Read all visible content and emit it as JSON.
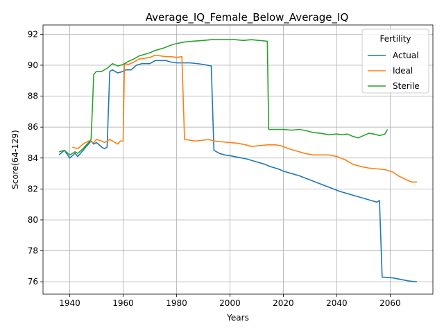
{
  "chart_data": {
    "type": "line",
    "title": "Average_IQ_Female_Below_Average_IQ",
    "xlabel": "Years",
    "ylabel": "Score(64-129)",
    "xlim": [
      1930,
      2076
    ],
    "ylim": [
      75.2,
      92.6
    ],
    "xticks": [
      1940,
      1960,
      1980,
      2000,
      2020,
      2040,
      2060
    ],
    "yticks": [
      76,
      78,
      80,
      82,
      84,
      86,
      88,
      90,
      92
    ],
    "grid": true,
    "legend": {
      "title": "Fertility",
      "placement": "top-right"
    },
    "series": [
      {
        "name": "Actual",
        "color": "#1f77b4",
        "points": [
          [
            1936,
            84.2
          ],
          [
            1938,
            84.5
          ],
          [
            1940,
            84.0
          ],
          [
            1942,
            84.3
          ],
          [
            1943,
            84.1
          ],
          [
            1945,
            84.5
          ],
          [
            1947,
            84.9
          ],
          [
            1948,
            85.1
          ],
          [
            1949,
            84.9
          ],
          [
            1950,
            85.0
          ],
          [
            1952,
            84.7
          ],
          [
            1953,
            84.6
          ],
          [
            1954,
            84.7
          ],
          [
            1955,
            89.6
          ],
          [
            1956,
            89.7
          ],
          [
            1957,
            89.6
          ],
          [
            1958,
            89.5
          ],
          [
            1960,
            89.6
          ],
          [
            1961,
            89.7
          ],
          [
            1963,
            89.7
          ],
          [
            1965,
            90.0
          ],
          [
            1967,
            90.1
          ],
          [
            1969,
            90.1
          ],
          [
            1970,
            90.1
          ],
          [
            1972,
            90.3
          ],
          [
            1974,
            90.3
          ],
          [
            1976,
            90.3
          ],
          [
            1978,
            90.2
          ],
          [
            1980,
            90.15
          ],
          [
            1983,
            90.15
          ],
          [
            1985,
            90.15
          ],
          [
            1988,
            90.1
          ],
          [
            1990,
            90.05
          ],
          [
            1993,
            89.95
          ],
          [
            1994,
            84.5
          ],
          [
            1996,
            84.3
          ],
          [
            1998,
            84.2
          ],
          [
            2000,
            84.15
          ],
          [
            2003,
            84.05
          ],
          [
            2006,
            83.95
          ],
          [
            2008,
            83.85
          ],
          [
            2010,
            83.75
          ],
          [
            2013,
            83.6
          ],
          [
            2015,
            83.45
          ],
          [
            2018,
            83.3
          ],
          [
            2020,
            83.15
          ],
          [
            2023,
            83.0
          ],
          [
            2026,
            82.85
          ],
          [
            2029,
            82.65
          ],
          [
            2032,
            82.45
          ],
          [
            2035,
            82.25
          ],
          [
            2038,
            82.05
          ],
          [
            2041,
            81.85
          ],
          [
            2044,
            81.7
          ],
          [
            2047,
            81.55
          ],
          [
            2050,
            81.4
          ],
          [
            2053,
            81.25
          ],
          [
            2055,
            81.15
          ],
          [
            2056,
            81.25
          ],
          [
            2057,
            76.3
          ],
          [
            2059,
            76.28
          ],
          [
            2061,
            76.25
          ],
          [
            2064,
            76.15
          ],
          [
            2067,
            76.05
          ],
          [
            2070,
            76.0
          ]
        ]
      },
      {
        "name": "Ideal",
        "color": "#ff7f0e",
        "points": [
          [
            1941,
            84.7
          ],
          [
            1943,
            84.6
          ],
          [
            1945,
            84.9
          ],
          [
            1947,
            85.1
          ],
          [
            1949,
            85.0
          ],
          [
            1950,
            85.2
          ],
          [
            1952,
            85.1
          ],
          [
            1953,
            85.0
          ],
          [
            1955,
            85.2
          ],
          [
            1957,
            85.0
          ],
          [
            1958,
            84.9
          ],
          [
            1959,
            85.1
          ],
          [
            1960,
            85.1
          ],
          [
            1960.5,
            90.1
          ],
          [
            1962,
            90.05
          ],
          [
            1964,
            90.2
          ],
          [
            1966,
            90.4
          ],
          [
            1968,
            90.45
          ],
          [
            1970,
            90.5
          ],
          [
            1972,
            90.65
          ],
          [
            1974,
            90.6
          ],
          [
            1976,
            90.55
          ],
          [
            1978,
            90.55
          ],
          [
            1980,
            90.5
          ],
          [
            1982,
            90.55
          ],
          [
            1983,
            85.2
          ],
          [
            1985,
            85.15
          ],
          [
            1987,
            85.1
          ],
          [
            1990,
            85.15
          ],
          [
            1992,
            85.2
          ],
          [
            1994,
            85.1
          ],
          [
            1997,
            85.05
          ],
          [
            2000,
            85.0
          ],
          [
            2003,
            84.95
          ],
          [
            2006,
            84.85
          ],
          [
            2008,
            84.75
          ],
          [
            2011,
            84.8
          ],
          [
            2014,
            84.85
          ],
          [
            2017,
            84.85
          ],
          [
            2019,
            84.8
          ],
          [
            2022,
            84.6
          ],
          [
            2025,
            84.45
          ],
          [
            2028,
            84.3
          ],
          [
            2031,
            84.2
          ],
          [
            2034,
            84.2
          ],
          [
            2037,
            84.2
          ],
          [
            2040,
            84.1
          ],
          [
            2043,
            83.9
          ],
          [
            2046,
            83.6
          ],
          [
            2049,
            83.45
          ],
          [
            2052,
            83.35
          ],
          [
            2055,
            83.3
          ],
          [
            2058,
            83.25
          ],
          [
            2061,
            83.1
          ],
          [
            2063,
            82.85
          ],
          [
            2066,
            82.6
          ],
          [
            2068,
            82.45
          ],
          [
            2070,
            82.45
          ]
        ]
      },
      {
        "name": "Sterile",
        "color": "#2ca02c",
        "points": [
          [
            1936,
            84.4
          ],
          [
            1938,
            84.5
          ],
          [
            1940,
            84.2
          ],
          [
            1942,
            84.4
          ],
          [
            1943,
            84.3
          ],
          [
            1945,
            84.6
          ],
          [
            1947,
            85.0
          ],
          [
            1948,
            85.2
          ],
          [
            1949,
            89.4
          ],
          [
            1950,
            89.6
          ],
          [
            1952,
            89.6
          ],
          [
            1954,
            89.8
          ],
          [
            1956,
            90.1
          ],
          [
            1958,
            89.95
          ],
          [
            1960,
            90.05
          ],
          [
            1962,
            90.25
          ],
          [
            1964,
            90.4
          ],
          [
            1966,
            90.6
          ],
          [
            1968,
            90.7
          ],
          [
            1970,
            90.8
          ],
          [
            1972,
            90.95
          ],
          [
            1975,
            91.1
          ],
          [
            1978,
            91.3
          ],
          [
            1980,
            91.4
          ],
          [
            1983,
            91.5
          ],
          [
            1986,
            91.55
          ],
          [
            1990,
            91.6
          ],
          [
            1993,
            91.65
          ],
          [
            1996,
            91.65
          ],
          [
            1999,
            91.65
          ],
          [
            2002,
            91.65
          ],
          [
            2005,
            91.6
          ],
          [
            2008,
            91.65
          ],
          [
            2011,
            91.6
          ],
          [
            2014,
            91.55
          ],
          [
            2014.5,
            85.85
          ],
          [
            2017,
            85.85
          ],
          [
            2020,
            85.85
          ],
          [
            2023,
            85.8
          ],
          [
            2026,
            85.85
          ],
          [
            2029,
            85.75
          ],
          [
            2031,
            85.65
          ],
          [
            2034,
            85.6
          ],
          [
            2037,
            85.5
          ],
          [
            2040,
            85.55
          ],
          [
            2042,
            85.5
          ],
          [
            2044,
            85.55
          ],
          [
            2046,
            85.4
          ],
          [
            2048,
            85.3
          ],
          [
            2050,
            85.45
          ],
          [
            2052,
            85.6
          ],
          [
            2054,
            85.55
          ],
          [
            2056,
            85.45
          ],
          [
            2058,
            85.55
          ],
          [
            2059,
            85.85
          ]
        ]
      }
    ]
  }
}
